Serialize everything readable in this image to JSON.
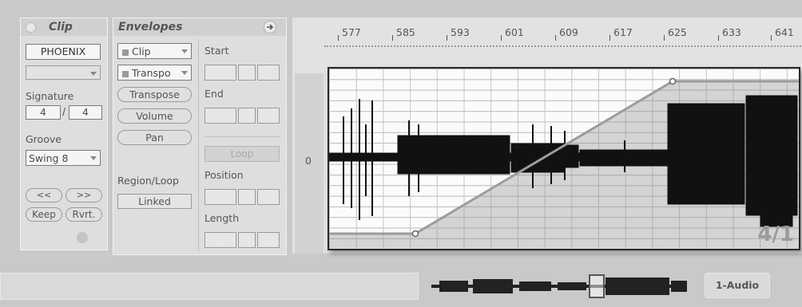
{
  "clip_panel": {
    "title": "Clip",
    "clip_name": "PHOENIX",
    "signature_label": "Signature",
    "sig_numerator": "4",
    "sig_separator": "/",
    "sig_denominator": "4",
    "groove_label": "Groove",
    "groove_value": "Swing 8",
    "nudge_back": "<<",
    "nudge_forward": ">>",
    "keep": "Keep",
    "revert": "Rvrt."
  },
  "envelopes_panel": {
    "title": "Envelopes",
    "device_chooser": "Clip",
    "control_chooser": "Transpo",
    "buttons": [
      "Transpose",
      "Volume",
      "Pan"
    ],
    "region_loop_label": "Region/Loop",
    "linked_label": "Linked",
    "start_label": "Start",
    "end_label": "End",
    "loop_label": "Loop",
    "position_label": "Position",
    "length_label": "Length"
  },
  "editor": {
    "ruler_labels": [
      "577",
      "585",
      "593",
      "601",
      "609",
      "617",
      "625",
      "633",
      "641"
    ],
    "zero_label": "0",
    "envelope_value": "4/1"
  },
  "bottom_bar": {
    "track_name": "1-Audio"
  }
}
